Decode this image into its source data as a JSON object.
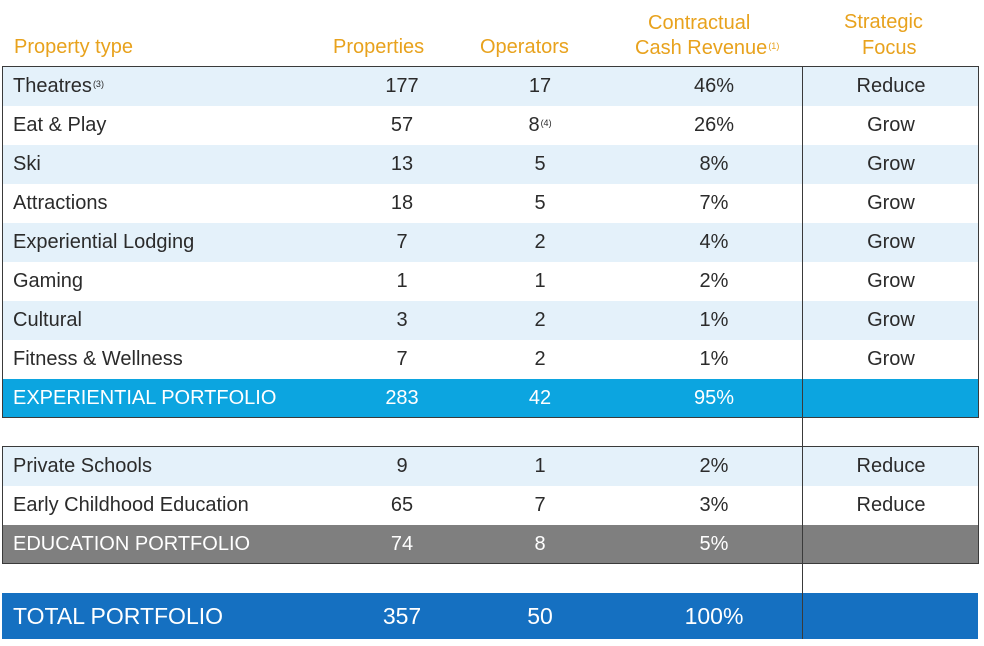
{
  "header": {
    "property_type": "Property type",
    "properties": "Properties",
    "operators": "Operators",
    "revenue_line1": "Contractual",
    "revenue_line2": "Cash Revenue",
    "revenue_note": "(1)",
    "focus_line1": "Strategic",
    "focus_line2": "Focus"
  },
  "experiential_rows": [
    {
      "type": "Theatres",
      "note": "(3)",
      "properties": "177",
      "operators": "17",
      "operators_note": "",
      "revenue": "46%",
      "focus": "Reduce"
    },
    {
      "type": "Eat & Play",
      "note": "",
      "properties": "57",
      "operators": "8",
      "operators_note": "(4)",
      "revenue": "26%",
      "focus": "Grow"
    },
    {
      "type": "Ski",
      "note": "",
      "properties": "13",
      "operators": "5",
      "operators_note": "",
      "revenue": "8%",
      "focus": "Grow"
    },
    {
      "type": "Attractions",
      "note": "",
      "properties": "18",
      "operators": "5",
      "operators_note": "",
      "revenue": "7%",
      "focus": "Grow"
    },
    {
      "type": "Experiential Lodging",
      "note": "",
      "properties": "7",
      "operators": "2",
      "operators_note": "",
      "revenue": "4%",
      "focus": "Grow"
    },
    {
      "type": "Gaming",
      "note": "",
      "properties": "1",
      "operators": "1",
      "operators_note": "",
      "revenue": "2%",
      "focus": "Grow"
    },
    {
      "type": "Cultural",
      "note": "",
      "properties": "3",
      "operators": "2",
      "operators_note": "",
      "revenue": "1%",
      "focus": "Grow"
    },
    {
      "type": "Fitness & Wellness",
      "note": "",
      "properties": "7",
      "operators": "2",
      "operators_note": "",
      "revenue": "1%",
      "focus": "Grow"
    }
  ],
  "experiential_total": {
    "type": "EXPERIENTIAL PORTFOLIO",
    "properties": "283",
    "operators": "42",
    "revenue": "95%"
  },
  "education_rows": [
    {
      "type": "Private Schools",
      "properties": "9",
      "operators": "1",
      "revenue": "2%",
      "focus": "Reduce"
    },
    {
      "type": "Early Childhood Education",
      "properties": "65",
      "operators": "7",
      "revenue": "3%",
      "focus": "Reduce"
    }
  ],
  "education_total": {
    "type": "EDUCATION PORTFOLIO",
    "properties": "74",
    "operators": "8",
    "revenue": "5%"
  },
  "grand_total": {
    "type": "TOTAL PORTFOLIO",
    "properties": "357",
    "operators": "50",
    "revenue": "100%"
  },
  "colors": {
    "header_text": "#e8a21d",
    "shade": "#e4f1fa",
    "experiential_total": "#0ca5e0",
    "education_total": "#7f7f7f",
    "grand_total": "#1570c1"
  }
}
